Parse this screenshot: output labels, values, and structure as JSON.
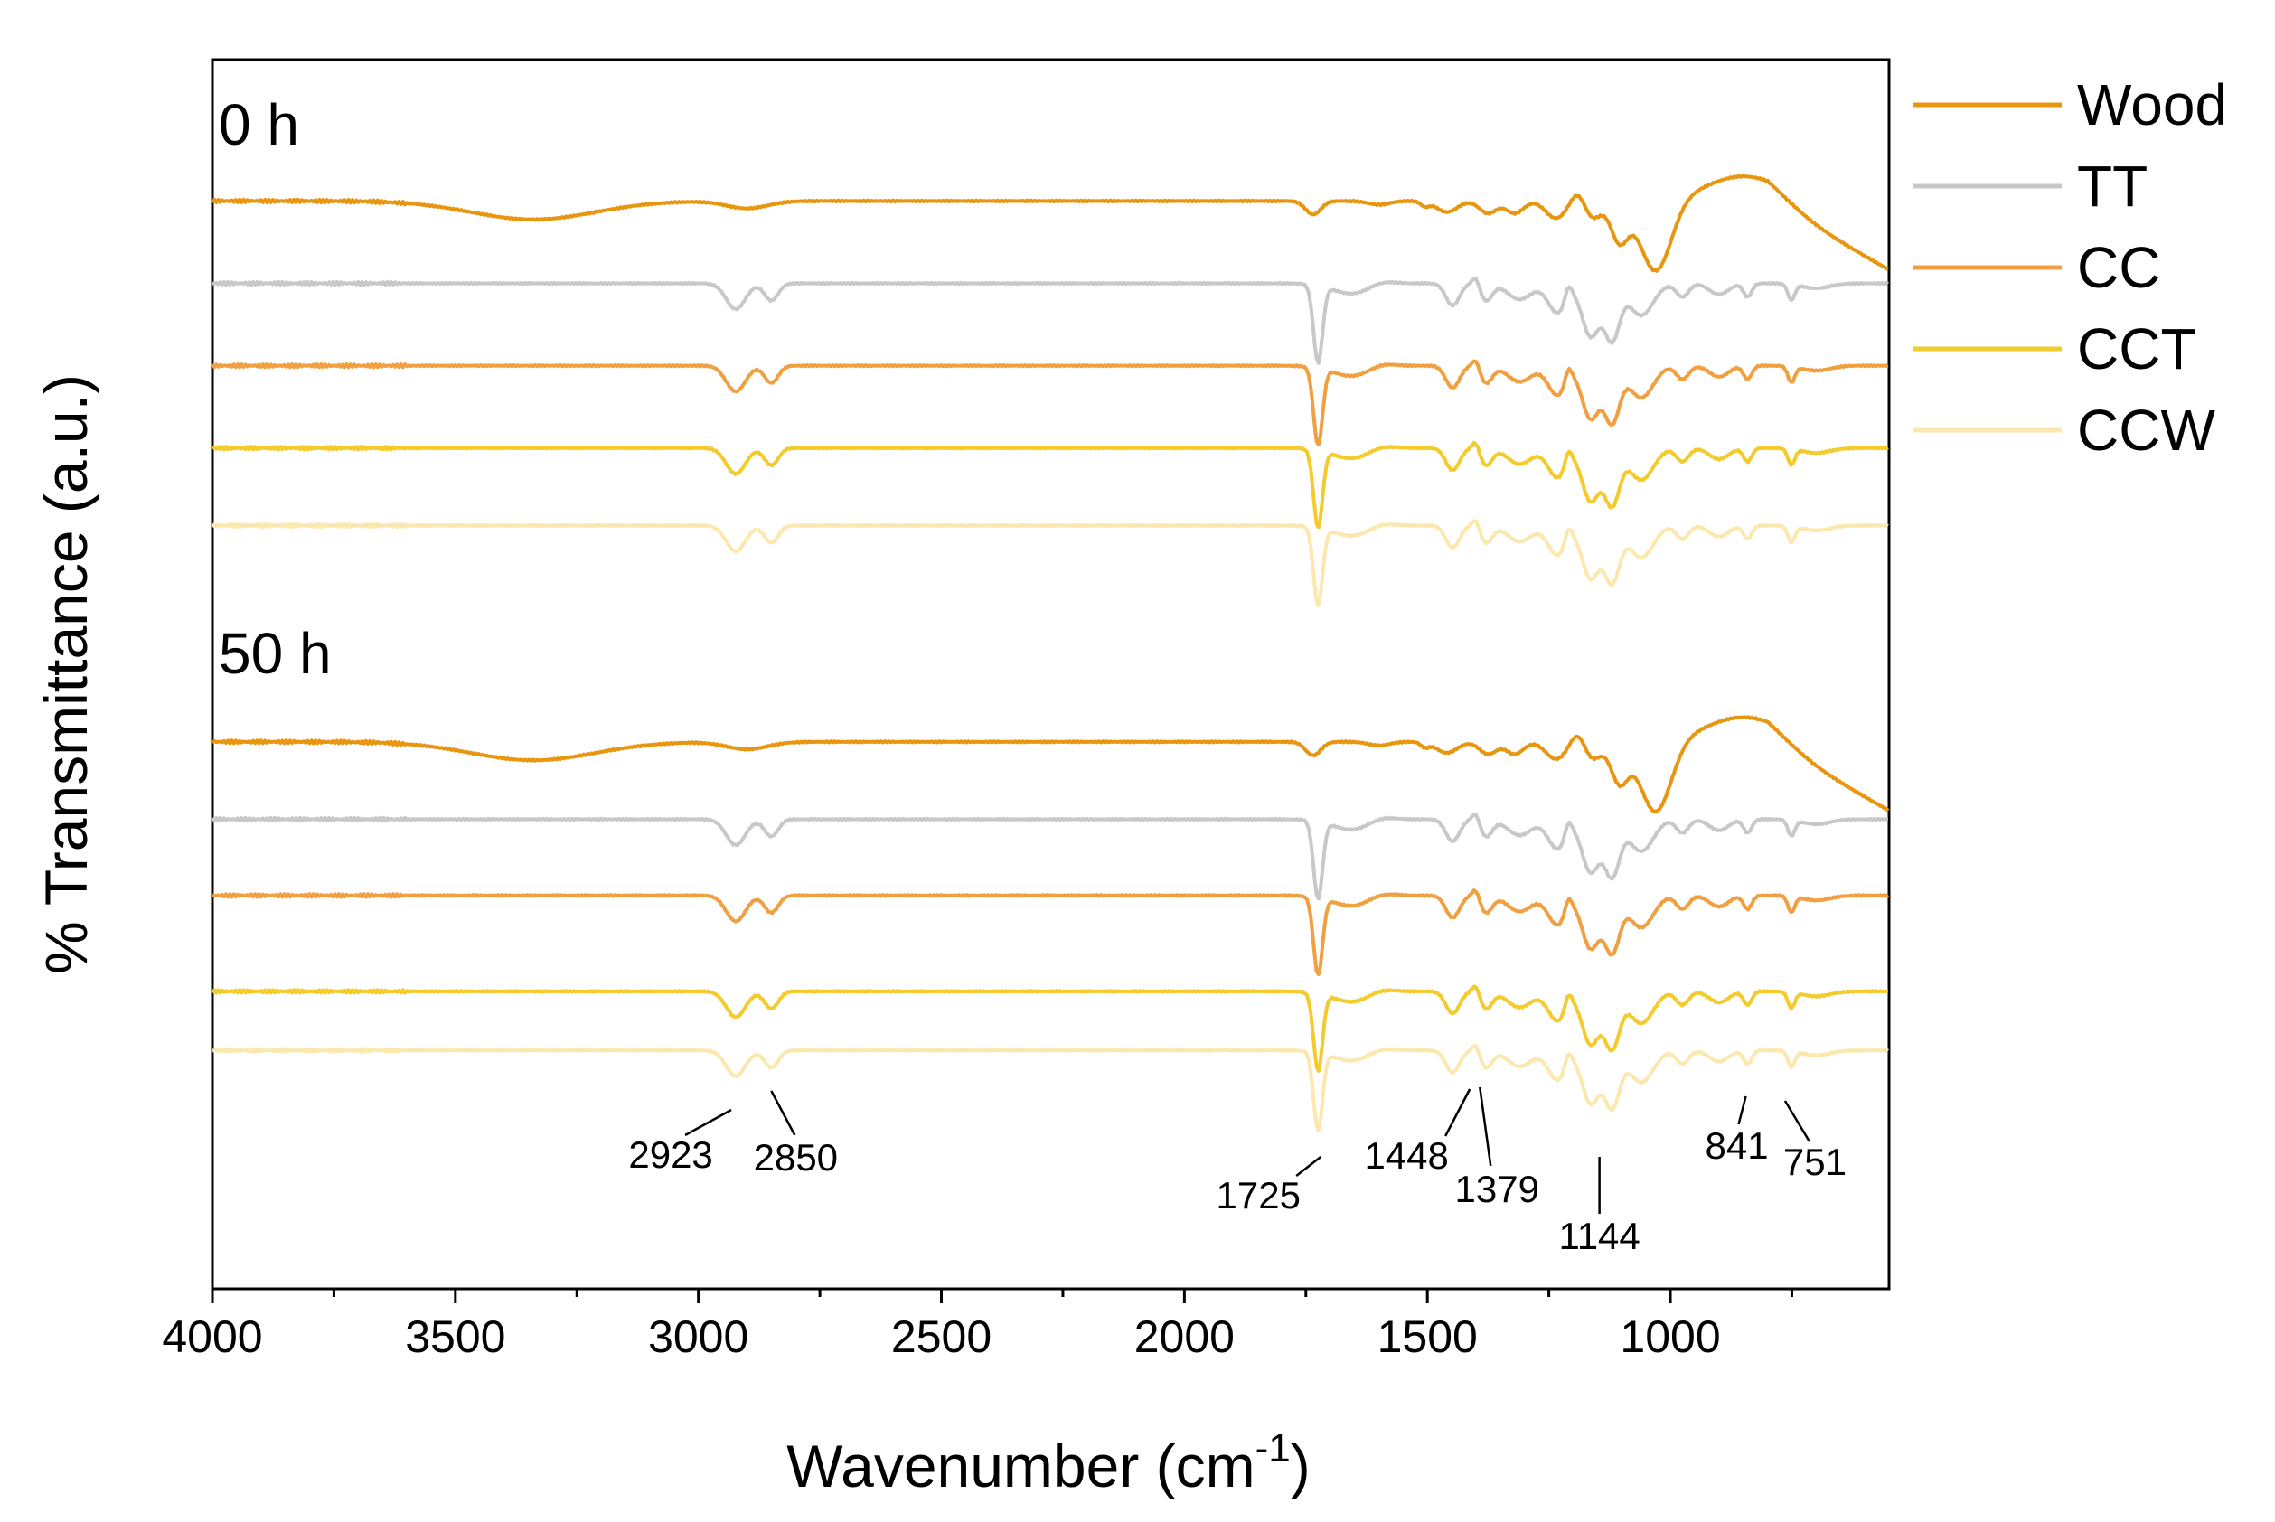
{
  "chart_data": {
    "type": "line",
    "title": "",
    "xlabel": "Wavenumber (cm",
    "xlabel_sup": "-1",
    "xlabel_end": ")",
    "ylabel": "% Transmittance (a.u.)",
    "xlim": [
      4000,
      550
    ],
    "xticks": [
      4000,
      3500,
      3000,
      2500,
      2000,
      1500,
      1000
    ],
    "x_minor_ticks": [
      3750,
      3250,
      2750,
      2250,
      1750,
      1250,
      750
    ],
    "y_units": "offset stacked spectra (0 = top of frame, 100 = bottom of frame)",
    "panels": [
      {
        "label": "0 h",
        "baselines": [
          11.5,
          18.2,
          24.9,
          31.6,
          37.9
        ]
      },
      {
        "label": "50 h",
        "baselines": [
          55.5,
          61.8,
          68.0,
          75.8,
          80.6
        ]
      }
    ],
    "series": [
      {
        "name": "Wood",
        "color": "#E8960F",
        "profile": "wood"
      },
      {
        "name": "TT",
        "color": "#C8C8C8",
        "profile": "ester"
      },
      {
        "name": "CC",
        "color": "#F0A040",
        "profile": "ester"
      },
      {
        "name": "CCT",
        "color": "#F3CB2C",
        "profile": "ester"
      },
      {
        "name": "CCW",
        "color": "#FBE8AE",
        "profile": "ester"
      }
    ],
    "annotations": [
      {
        "label": "2923",
        "x": 2923
      },
      {
        "label": "2850",
        "x": 2850
      },
      {
        "label": "1725",
        "x": 1725
      },
      {
        "label": "1448",
        "x": 1448
      },
      {
        "label": "1379",
        "x": 1379
      },
      {
        "label": "1144",
        "x": 1144
      },
      {
        "label": "841",
        "x": 841
      },
      {
        "label": "751",
        "x": 751
      }
    ],
    "grid": false,
    "legend": "top-right, outside plot"
  }
}
